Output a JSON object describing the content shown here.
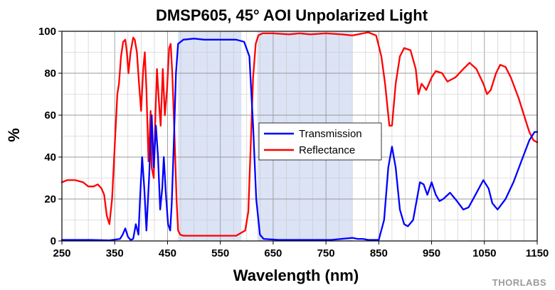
{
  "chart_data": {
    "type": "line",
    "title": "DMSP605, 45° AOI Unpolarized Light",
    "xlabel": "Wavelength (nm)",
    "ylabel": "%",
    "xlim": [
      250,
      1150
    ],
    "ylim": [
      0,
      100
    ],
    "xticks": [
      250,
      350,
      450,
      550,
      650,
      750,
      850,
      950,
      1050,
      1150
    ],
    "yticks": [
      0,
      20,
      40,
      60,
      80,
      100
    ],
    "grid": true,
    "legend_position": "center-right",
    "shaded_bands": [
      {
        "range": [
          470,
          590
        ],
        "color": "#dbe3f5"
      },
      {
        "range": [
          620,
          800
        ],
        "color": "#dbe3f5"
      }
    ],
    "series": [
      {
        "name": "Transmission",
        "color": "#0000ff",
        "points": [
          [
            250,
            0.5
          ],
          [
            300,
            0.5
          ],
          [
            340,
            0.3
          ],
          [
            360,
            1
          ],
          [
            365,
            3
          ],
          [
            370,
            6
          ],
          [
            375,
            2
          ],
          [
            380,
            0.5
          ],
          [
            385,
            1
          ],
          [
            390,
            8
          ],
          [
            395,
            3
          ],
          [
            398,
            20
          ],
          [
            402,
            40
          ],
          [
            406,
            25
          ],
          [
            410,
            5
          ],
          [
            415,
            30
          ],
          [
            420,
            60
          ],
          [
            424,
            35
          ],
          [
            428,
            55
          ],
          [
            432,
            40
          ],
          [
            436,
            15
          ],
          [
            440,
            25
          ],
          [
            443,
            40
          ],
          [
            447,
            22
          ],
          [
            451,
            8
          ],
          [
            455,
            5
          ],
          [
            458,
            18
          ],
          [
            462,
            48
          ],
          [
            466,
            80
          ],
          [
            470,
            94
          ],
          [
            480,
            96
          ],
          [
            500,
            96.5
          ],
          [
            520,
            96
          ],
          [
            540,
            96
          ],
          [
            560,
            96
          ],
          [
            580,
            96
          ],
          [
            595,
            95
          ],
          [
            605,
            88
          ],
          [
            612,
            55
          ],
          [
            618,
            20
          ],
          [
            625,
            3
          ],
          [
            632,
            1
          ],
          [
            660,
            0.5
          ],
          [
            700,
            0.5
          ],
          [
            760,
            0.5
          ],
          [
            800,
            1.5
          ],
          [
            810,
            1
          ],
          [
            820,
            1
          ],
          [
            830,
            0.5
          ],
          [
            850,
            0.5
          ],
          [
            860,
            10
          ],
          [
            868,
            35
          ],
          [
            875,
            45
          ],
          [
            882,
            35
          ],
          [
            890,
            15
          ],
          [
            898,
            8
          ],
          [
            905,
            7
          ],
          [
            915,
            10
          ],
          [
            928,
            28
          ],
          [
            935,
            27
          ],
          [
            942,
            22
          ],
          [
            950,
            28
          ],
          [
            958,
            22
          ],
          [
            965,
            19
          ],
          [
            972,
            20
          ],
          [
            985,
            23
          ],
          [
            998,
            19
          ],
          [
            1010,
            15
          ],
          [
            1020,
            16
          ],
          [
            1033,
            22
          ],
          [
            1048,
            29
          ],
          [
            1058,
            25
          ],
          [
            1065,
            18
          ],
          [
            1075,
            15
          ],
          [
            1090,
            20
          ],
          [
            1105,
            28
          ],
          [
            1120,
            38
          ],
          [
            1135,
            48
          ],
          [
            1145,
            52
          ],
          [
            1150,
            52
          ]
        ]
      },
      {
        "name": "Reflectance",
        "color": "#ff0000",
        "points": [
          [
            250,
            28
          ],
          [
            260,
            29
          ],
          [
            275,
            29
          ],
          [
            290,
            28
          ],
          [
            300,
            26
          ],
          [
            310,
            26
          ],
          [
            318,
            27
          ],
          [
            325,
            25
          ],
          [
            330,
            22
          ],
          [
            335,
            12
          ],
          [
            340,
            8
          ],
          [
            345,
            20
          ],
          [
            350,
            45
          ],
          [
            355,
            70
          ],
          [
            358,
            75
          ],
          [
            362,
            88
          ],
          [
            366,
            95
          ],
          [
            370,
            96
          ],
          [
            373,
            90
          ],
          [
            376,
            80
          ],
          [
            380,
            90
          ],
          [
            385,
            97
          ],
          [
            388,
            96
          ],
          [
            392,
            90
          ],
          [
            396,
            75
          ],
          [
            400,
            62
          ],
          [
            404,
            82
          ],
          [
            407,
            90
          ],
          [
            410,
            72
          ],
          [
            414,
            38
          ],
          [
            418,
            62
          ],
          [
            420,
            35
          ],
          [
            424,
            30
          ],
          [
            427,
            60
          ],
          [
            430,
            82
          ],
          [
            434,
            65
          ],
          [
            437,
            55
          ],
          [
            441,
            82
          ],
          [
            445,
            60
          ],
          [
            449,
            72
          ],
          [
            453,
            92
          ],
          [
            456,
            94
          ],
          [
            459,
            80
          ],
          [
            463,
            52
          ],
          [
            467,
            20
          ],
          [
            470,
            5
          ],
          [
            474,
            3
          ],
          [
            480,
            2.5
          ],
          [
            500,
            2.5
          ],
          [
            540,
            2.5
          ],
          [
            580,
            2.5
          ],
          [
            597,
            5
          ],
          [
            603,
            14
          ],
          [
            607,
            42
          ],
          [
            612,
            78
          ],
          [
            617,
            94
          ],
          [
            622,
            98
          ],
          [
            630,
            99
          ],
          [
            650,
            99
          ],
          [
            680,
            98.5
          ],
          [
            700,
            99
          ],
          [
            720,
            98.5
          ],
          [
            750,
            99
          ],
          [
            780,
            98.5
          ],
          [
            800,
            98
          ],
          [
            830,
            99.5
          ],
          [
            845,
            98
          ],
          [
            855,
            88
          ],
          [
            862,
            75
          ],
          [
            870,
            55
          ],
          [
            875,
            55
          ],
          [
            882,
            75
          ],
          [
            890,
            88
          ],
          [
            898,
            92
          ],
          [
            910,
            91
          ],
          [
            920,
            82
          ],
          [
            925,
            70
          ],
          [
            931,
            75
          ],
          [
            940,
            72
          ],
          [
            950,
            78
          ],
          [
            958,
            81
          ],
          [
            970,
            80
          ],
          [
            980,
            76
          ],
          [
            995,
            78
          ],
          [
            1010,
            82
          ],
          [
            1022,
            85
          ],
          [
            1035,
            82
          ],
          [
            1048,
            75
          ],
          [
            1055,
            70
          ],
          [
            1062,
            72
          ],
          [
            1072,
            80
          ],
          [
            1080,
            84
          ],
          [
            1090,
            83
          ],
          [
            1100,
            78
          ],
          [
            1115,
            68
          ],
          [
            1125,
            60
          ],
          [
            1135,
            52
          ],
          [
            1143,
            48
          ],
          [
            1150,
            47
          ]
        ]
      }
    ]
  },
  "branding": {
    "text": "THORLABS"
  }
}
